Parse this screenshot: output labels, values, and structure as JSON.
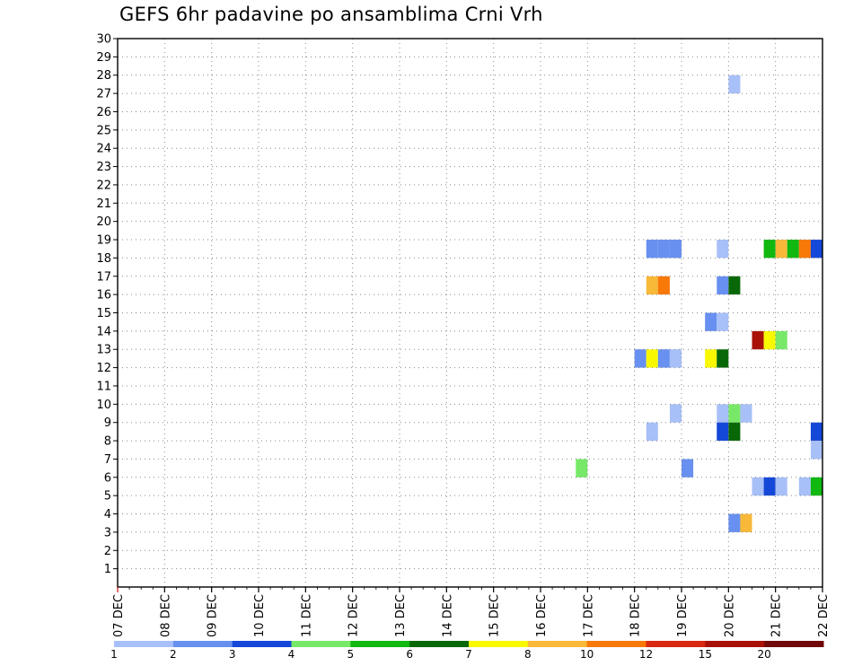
{
  "chart_data": {
    "type": "heatmap",
    "title": "GEFS 6hr padavine po ansamblima Crni Vrh",
    "x_tick_labels": [
      "07 DEC",
      "08 DEC",
      "09 DEC",
      "10 DEC",
      "11 DEC",
      "12 DEC",
      "13 DEC",
      "14 DEC",
      "15 DEC",
      "16 DEC",
      "17 DEC",
      "18 DEC",
      "19 DEC",
      "20 DEC",
      "21 DEC",
      "22 DEC"
    ],
    "y_range": [
      0,
      30
    ],
    "y_ticks": [
      1,
      2,
      3,
      4,
      5,
      6,
      7,
      8,
      9,
      10,
      11,
      12,
      13,
      14,
      15,
      16,
      17,
      18,
      19,
      20,
      21,
      22,
      23,
      24,
      25,
      26,
      27,
      28,
      29,
      30
    ],
    "x_range_steps": [
      0,
      60
    ],
    "grid": true,
    "legend": {
      "labels": [
        "1",
        "2",
        "3",
        "4",
        "5",
        "6",
        "7",
        "8",
        "10",
        "12",
        "15",
        "20"
      ],
      "colors": [
        "#a8c0f8",
        "#6890f0",
        "#1448d8",
        "#78e868",
        "#10b810",
        "#086808",
        "#f8f800",
        "#f8b838",
        "#f87808",
        "#d82810",
        "#a81008",
        "#700808"
      ]
    },
    "cells": [
      {
        "step": 53,
        "member": 28,
        "color": "#a8c0f8"
      },
      {
        "step": 46,
        "member": 19,
        "color": "#6890f0"
      },
      {
        "step": 47,
        "member": 19,
        "color": "#6890f0"
      },
      {
        "step": 48,
        "member": 19,
        "color": "#6890f0"
      },
      {
        "step": 52,
        "member": 19,
        "color": "#a8c0f8"
      },
      {
        "step": 56,
        "member": 19,
        "color": "#10b810"
      },
      {
        "step": 57,
        "member": 19,
        "color": "#f8b838"
      },
      {
        "step": 58,
        "member": 19,
        "color": "#10b810"
      },
      {
        "step": 59,
        "member": 19,
        "color": "#f87808"
      },
      {
        "step": 60,
        "member": 19,
        "color": "#1448d8"
      },
      {
        "step": 46,
        "member": 17,
        "color": "#f8b838"
      },
      {
        "step": 47,
        "member": 17,
        "color": "#f87808"
      },
      {
        "step": 52,
        "member": 17,
        "color": "#6890f0"
      },
      {
        "step": 53,
        "member": 17,
        "color": "#086808"
      },
      {
        "step": 51,
        "member": 15,
        "color": "#6890f0"
      },
      {
        "step": 52,
        "member": 15,
        "color": "#a8c0f8"
      },
      {
        "step": 55,
        "member": 14,
        "color": "#a81008"
      },
      {
        "step": 56,
        "member": 14,
        "color": "#f8f800"
      },
      {
        "step": 57,
        "member": 14,
        "color": "#78e868"
      },
      {
        "step": 45,
        "member": 13,
        "color": "#6890f0"
      },
      {
        "step": 46,
        "member": 13,
        "color": "#f8f800"
      },
      {
        "step": 47,
        "member": 13,
        "color": "#6890f0"
      },
      {
        "step": 48,
        "member": 13,
        "color": "#a8c0f8"
      },
      {
        "step": 51,
        "member": 13,
        "color": "#f8f800"
      },
      {
        "step": 52,
        "member": 13,
        "color": "#086808"
      },
      {
        "step": 48,
        "member": 10,
        "color": "#a8c0f8"
      },
      {
        "step": 52,
        "member": 10,
        "color": "#a8c0f8"
      },
      {
        "step": 53,
        "member": 10,
        "color": "#78e868"
      },
      {
        "step": 54,
        "member": 10,
        "color": "#a8c0f8"
      },
      {
        "step": 46,
        "member": 9,
        "color": "#a8c0f8"
      },
      {
        "step": 52,
        "member": 9,
        "color": "#1448d8"
      },
      {
        "step": 53,
        "member": 9,
        "color": "#086808"
      },
      {
        "step": 60,
        "member": 9,
        "color": "#1448d8"
      },
      {
        "step": 60,
        "member": 8,
        "color": "#a8c0f8"
      },
      {
        "step": 40,
        "member": 7,
        "color": "#78e868"
      },
      {
        "step": 49,
        "member": 7,
        "color": "#6890f0"
      },
      {
        "step": 55,
        "member": 6,
        "color": "#a8c0f8"
      },
      {
        "step": 56,
        "member": 6,
        "color": "#1448d8"
      },
      {
        "step": 57,
        "member": 6,
        "color": "#a8c0f8"
      },
      {
        "step": 59,
        "member": 6,
        "color": "#a8c0f8"
      },
      {
        "step": 60,
        "member": 6,
        "color": "#10b810"
      },
      {
        "step": 53,
        "member": 4,
        "color": "#6890f0"
      },
      {
        "step": 54,
        "member": 4,
        "color": "#f8b838"
      }
    ]
  }
}
